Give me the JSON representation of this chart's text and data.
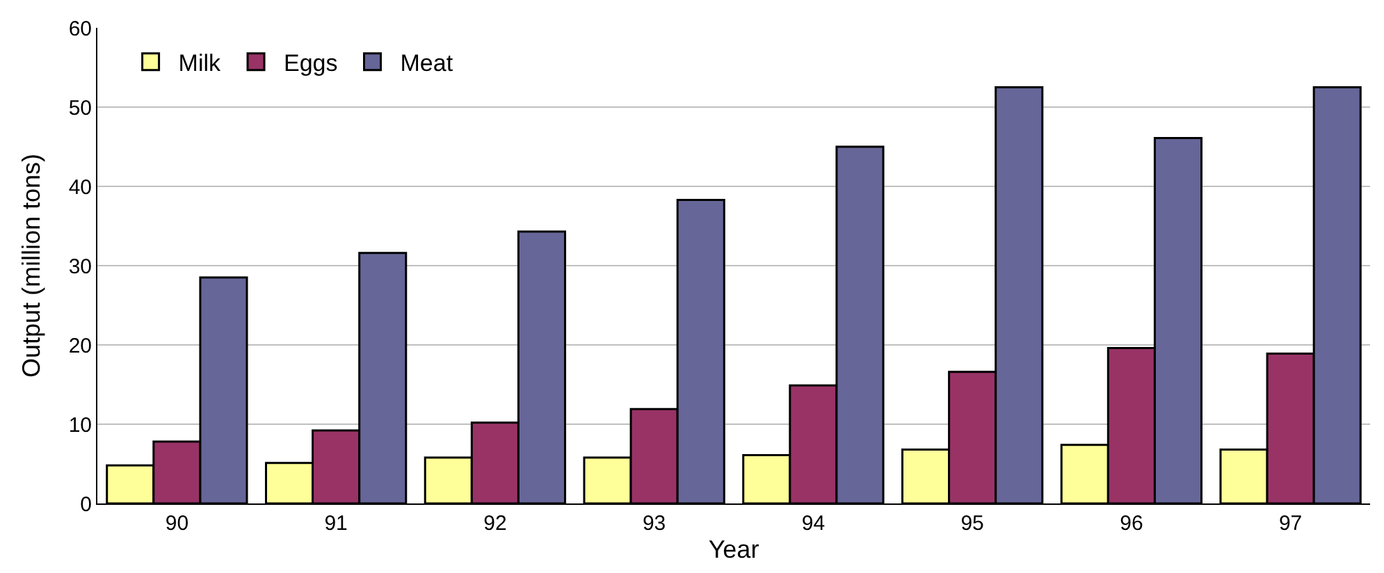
{
  "chart_data": {
    "type": "bar",
    "xlabel": "Year",
    "ylabel": "Output (million tons)",
    "categories": [
      "90",
      "91",
      "92",
      "93",
      "94",
      "95",
      "96",
      "97"
    ],
    "series": [
      {
        "name": "Milk",
        "color": "#ffff99",
        "values": [
          4.8,
          5.1,
          5.8,
          5.8,
          6.1,
          6.8,
          7.4,
          6.8
        ]
      },
      {
        "name": "Eggs",
        "color": "#993366",
        "values": [
          7.8,
          9.2,
          10.2,
          11.9,
          14.9,
          16.6,
          19.6,
          18.9
        ]
      },
      {
        "name": "Meat",
        "color": "#666699",
        "values": [
          28.5,
          31.6,
          34.3,
          38.3,
          45.0,
          52.5,
          46.1,
          52.5
        ]
      }
    ],
    "ylim": [
      0,
      60
    ],
    "yticks": [
      0,
      10,
      20,
      30,
      40,
      50,
      60
    ],
    "grid": "y",
    "legend": "top left"
  }
}
